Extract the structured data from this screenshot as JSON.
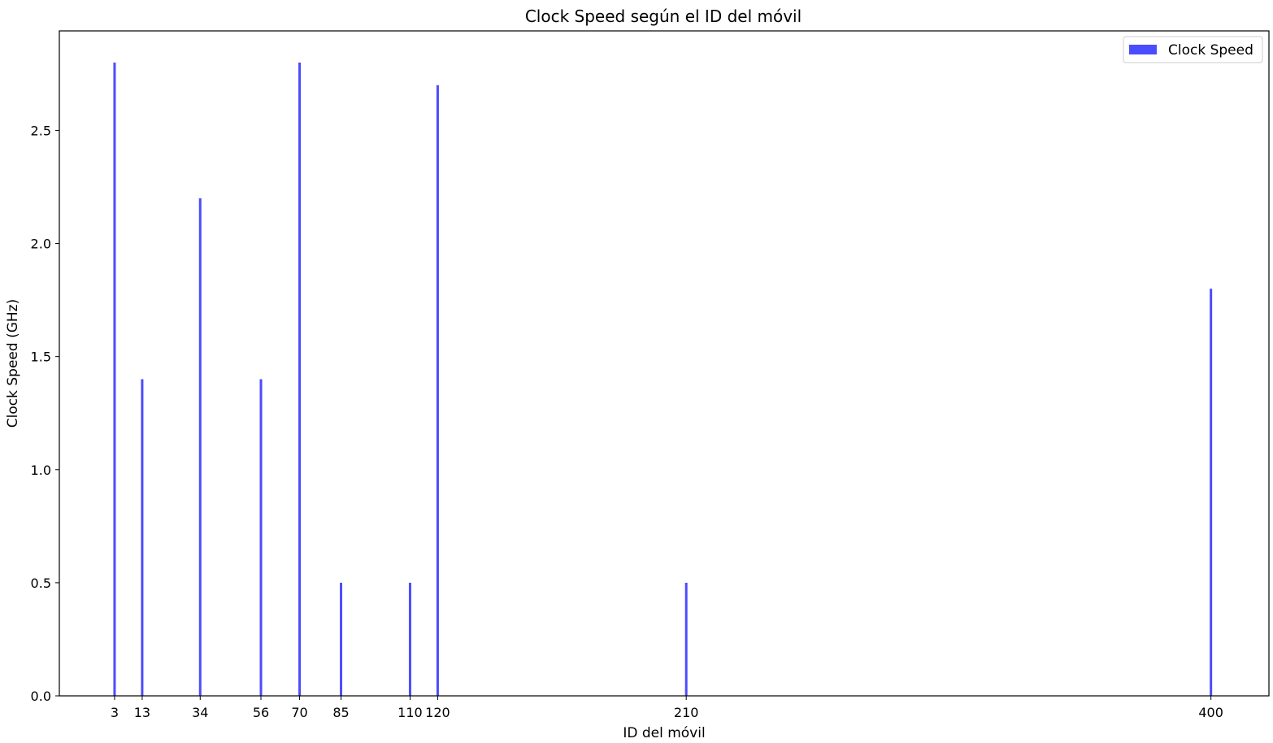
{
  "chart_data": {
    "type": "bar",
    "title": "Clock Speed según el ID del móvil",
    "xlabel": "ID del móvil",
    "ylabel": "Clock Speed (GHz)",
    "x": [
      3,
      13,
      34,
      56,
      70,
      85,
      110,
      120,
      210,
      400
    ],
    "x_tick_labels": [
      "3",
      "13",
      "34",
      "56",
      "70",
      "85",
      "110",
      "120",
      "210",
      "400"
    ],
    "series": [
      {
        "name": "Clock Speed",
        "color": "#4c4cff",
        "values": [
          2.8,
          1.4,
          2.2,
          1.4,
          2.8,
          0.5,
          0.5,
          2.7,
          0.5,
          1.8
        ]
      }
    ],
    "y_ticks": [
      0.0,
      0.5,
      1.0,
      1.5,
      2.0,
      2.5
    ],
    "y_tick_labels": [
      "0.0",
      "0.5",
      "1.0",
      "1.5",
      "2.0",
      "2.5"
    ],
    "xlim": [
      -17,
      421
    ],
    "ylim": [
      0,
      2.94
    ],
    "grid": false,
    "legend_position": "top-right"
  }
}
